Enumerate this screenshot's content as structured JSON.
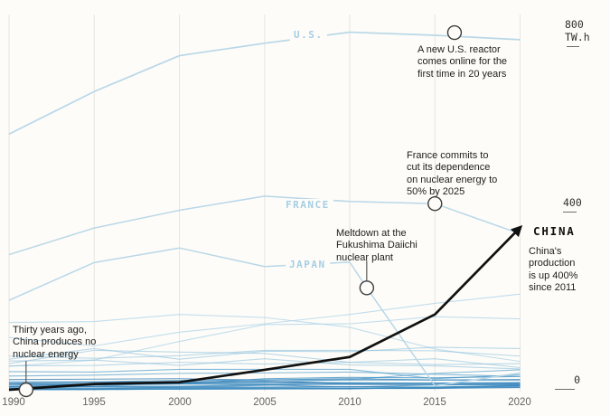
{
  "chart_data": {
    "type": "line",
    "unit_label": "TW.h",
    "x_range": [
      1990,
      2020
    ],
    "y_range": [
      0,
      840
    ],
    "grid": "vertical-ticks",
    "x_tick_labels": [
      "1990",
      "1995",
      "2000",
      "2005",
      "2010",
      "2015",
      "2020"
    ],
    "x_tick_years": [
      1990,
      1995,
      2000,
      2005,
      2010,
      2015,
      2020
    ],
    "y_ticks": [
      {
        "value": 0,
        "label": "0"
      },
      {
        "value": 400,
        "label": "400"
      },
      {
        "value": 800,
        "label": "800 TW.h"
      }
    ],
    "series": [
      {
        "name": "U.S.",
        "years": [
          1990,
          1995,
          2000,
          2005,
          2010,
          2015,
          2020
        ],
        "values": [
          577,
          673,
          754,
          782,
          807,
          800,
          790
        ],
        "color": "#b9d7e8",
        "width": 1.7,
        "arrow": false
      },
      {
        "name": "FRANCE",
        "years": [
          1990,
          1995,
          2000,
          2005,
          2010,
          2015,
          2020
        ],
        "values": [
          305,
          365,
          405,
          437,
          425,
          420,
          352
        ],
        "color": "#b9d7e8",
        "width": 1.5,
        "arrow": false
      },
      {
        "name": "JAPAN",
        "years": [
          1990,
          1995,
          2000,
          2005,
          2010,
          2011,
          2015,
          2020
        ],
        "values": [
          202,
          287,
          320,
          278,
          288,
          230,
          9,
          38
        ],
        "color": "#b9d7e8",
        "width": 1.5,
        "arrow": false
      },
      {
        "name": "CHINA",
        "years": [
          1990,
          1995,
          2000,
          2005,
          2010,
          2015,
          2020
        ],
        "values": [
          0,
          13,
          17,
          45,
          74,
          170,
          366
        ],
        "color": "#111111",
        "width": 2.7,
        "arrow": true
      }
    ],
    "background_series": [
      [
        118,
        99,
        130,
        149,
        170,
        195,
        216
      ],
      [
        53,
        67,
        109,
        147,
        149,
        165,
        160
      ],
      [
        152,
        154,
        170,
        163,
        141,
        92,
        64
      ],
      [
        69,
        93,
        69,
        87,
        86,
        96,
        93
      ],
      [
        76,
        71,
        77,
        89,
        89,
        88,
        76
      ],
      [
        59,
        89,
        85,
        82,
        62,
        70,
        50
      ],
      [
        65,
        67,
        55,
        70,
        56,
        54,
        47
      ],
      [
        54,
        55,
        62,
        58,
        62,
        57,
        59
      ],
      [
        41,
        40,
        46,
        46,
        46,
        25,
        34
      ],
      [
        6,
        8,
        16,
        17,
        23,
        37,
        45
      ],
      [
        12,
        12,
        13,
        25,
        28,
        27,
        30
      ],
      [
        23,
        24,
        25,
        22,
        25,
        22,
        23
      ],
      [
        18,
        18,
        21,
        22,
        22,
        22,
        22
      ],
      [
        15,
        17,
        18,
        19,
        15,
        15,
        16
      ],
      [
        13,
        14,
        14,
        14,
        16,
        15,
        16
      ],
      [
        12,
        11,
        16,
        18,
        14,
        14,
        14
      ],
      [
        2,
        2,
        6,
        10,
        14,
        15,
        14
      ],
      [
        8,
        11,
        13,
        12,
        12,
        11,
        12
      ],
      [
        3,
        8,
        8,
        11,
        6,
        11,
        11
      ],
      [
        7,
        7,
        6,
        6,
        7,
        6,
        10
      ],
      [
        31,
        33,
        37,
        38,
        40,
        35,
        30
      ],
      [
        0,
        1,
        1,
        2,
        3,
        4,
        9
      ],
      [
        4,
        4,
        5,
        5,
        6,
        5,
        6
      ],
      [
        1,
        2,
        3,
        3,
        3,
        3,
        5
      ],
      [
        0,
        0,
        2,
        2,
        2,
        6,
        8
      ]
    ],
    "annotations": [
      {
        "id": "us-reactor",
        "text": "A new U.S. reactor\ncomes online for the\nfirst time in 20 years",
        "marker": {
          "year": 2016.15,
          "value": 806
        },
        "connector": null
      },
      {
        "id": "france-commits",
        "text": "France commits to\ncut its dependence\non nuclear energy to\n50% by 2025",
        "marker": {
          "year": 2015,
          "value": 420
        },
        "connector": null
      },
      {
        "id": "fukushima",
        "text": "Meltdown at the\nFukushima Daiichi\nnuclear plant",
        "marker": {
          "year": 2011,
          "value": 230
        },
        "connector": {
          "len": 22,
          "gap": 8
        }
      },
      {
        "id": "china-zero",
        "text": "Thirty years ago,\nChina produces no\nnuclear energy",
        "marker": {
          "year": 1991,
          "value": 0
        },
        "connector": {
          "len": 24,
          "gap": 8
        }
      },
      {
        "id": "china-note",
        "text": "China's\nproduction\nis up 400%\nsince 2011",
        "marker": null,
        "connector": null
      }
    ],
    "colors": {
      "background": "#fdfcf8",
      "gridline": "#e7e5e0",
      "pale_line": "#b9d7e8",
      "country_label_blue": "#a6cee3",
      "china_line": "#111111",
      "marker_stroke": "#3c3c3c",
      "axis_text": "#636363"
    }
  }
}
